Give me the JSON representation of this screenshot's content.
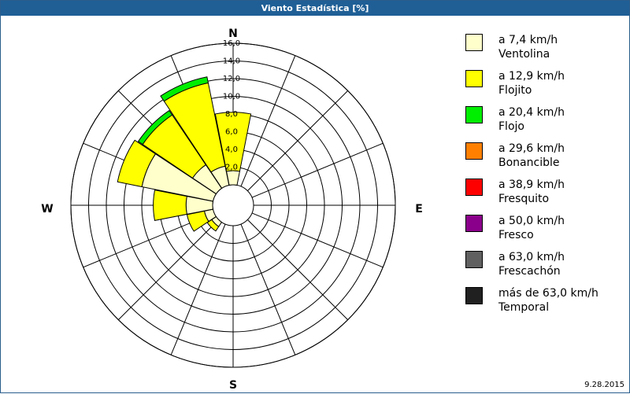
{
  "window": {
    "title": "Viento Estadística [%]",
    "date": "9.28.2015"
  },
  "chart_data": {
    "type": "windrose",
    "directions": [
      "N",
      "NNE",
      "NE",
      "ENE",
      "E",
      "ESE",
      "SE",
      "SSE",
      "S",
      "SSW",
      "SW",
      "WSW",
      "W",
      "WNW",
      "NW",
      "NNW"
    ],
    "radial_axis": {
      "min": 0,
      "max": 16,
      "ticks": [
        "2,0",
        "4,0",
        "6,0",
        "8,0",
        "10,0",
        "12,0",
        "14,0",
        "16,0"
      ]
    },
    "compass_labels": {
      "north": "N",
      "east": "E",
      "south": "S",
      "west": "W"
    },
    "series": [
      {
        "name": "Ventolina",
        "range": "a 7,4 km/h",
        "color": "#ffffcc",
        "values": [
          1.6,
          0,
          0,
          0,
          0,
          0,
          0,
          0,
          0,
          0,
          0.6,
          1.0,
          3.0,
          8.2,
          3.2,
          2.2
        ]
      },
      {
        "name": "Flojito",
        "range": "a 12,9 km/h",
        "color": "#ffff00",
        "values": [
          6.6,
          0,
          0,
          0,
          0,
          0,
          0,
          0,
          0,
          0,
          0.6,
          2.0,
          3.7,
          2.8,
          6.8,
          9.6
        ]
      },
      {
        "name": "Flojo",
        "range": "a 20,4 km/h",
        "color": "#00ee00",
        "values": [
          0,
          0,
          0,
          0,
          0,
          0,
          0,
          0,
          0,
          0,
          0,
          0,
          0,
          0,
          0.6,
          0.7
        ]
      },
      {
        "name": "Bonancible",
        "range": "a 29,6 km/h",
        "color": "#ff8000",
        "values": [
          0,
          0,
          0,
          0,
          0,
          0,
          0,
          0,
          0,
          0,
          0,
          0,
          0,
          0,
          0,
          0
        ]
      },
      {
        "name": "Fresquito",
        "range": "a 38,9 km/h",
        "color": "#ff0000",
        "values": [
          0,
          0,
          0,
          0,
          0,
          0,
          0,
          0,
          0,
          0,
          0,
          0,
          0,
          0,
          0,
          0
        ]
      },
      {
        "name": "Fresco",
        "range": "a 50,0 km/h",
        "color": "#8b008b",
        "values": [
          0,
          0,
          0,
          0,
          0,
          0,
          0,
          0,
          0,
          0,
          0,
          0,
          0,
          0,
          0,
          0
        ]
      },
      {
        "name": "Frescachón",
        "range": "a 63,0 km/h",
        "color": "#606060",
        "values": [
          0,
          0,
          0,
          0,
          0,
          0,
          0,
          0,
          0,
          0,
          0,
          0,
          0,
          0,
          0,
          0
        ]
      },
      {
        "name": "Temporal",
        "range": "más de 63,0 km/h",
        "color": "#202020",
        "values": [
          0,
          0,
          0,
          0,
          0,
          0,
          0,
          0,
          0,
          0,
          0,
          0,
          0,
          0,
          0,
          0
        ]
      }
    ]
  }
}
